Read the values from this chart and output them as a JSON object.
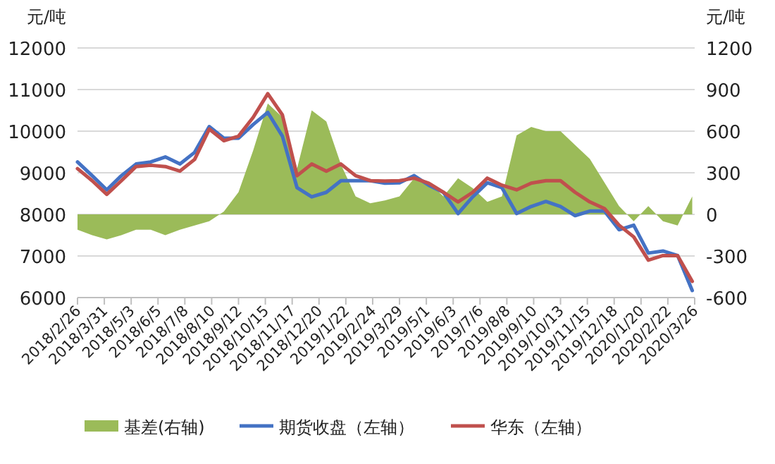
{
  "chart_data": {
    "type": "line",
    "ylabel": "元/吨",
    "y2label": "元/吨",
    "x": [
      "2018-02-26",
      "2018-03-16",
      "2018-04-03",
      "2018-04-21",
      "2018-05-09",
      "2018-05-27",
      "2018-06-14",
      "2018-07-02",
      "2018-07-20",
      "2018-08-07",
      "2018-08-25",
      "2018-09-12",
      "2018-09-30",
      "2018-10-18",
      "2018-11-05",
      "2018-11-23",
      "2018-12-11",
      "2018-12-29",
      "2019-01-16",
      "2019-02-03",
      "2019-02-21",
      "2019-03-11",
      "2019-03-29",
      "2019-04-16",
      "2019-05-04",
      "2019-05-22",
      "2019-06-09",
      "2019-06-27",
      "2019-07-15",
      "2019-08-02",
      "2019-08-20",
      "2019-09-07",
      "2019-09-25",
      "2019-10-13",
      "2019-10-31",
      "2019-11-18",
      "2019-12-06",
      "2019-12-24",
      "2020-01-11",
      "2020-01-29",
      "2020-02-16",
      "2020-03-05",
      "2020-03-23"
    ],
    "series": [
      {
        "name": "基差(右轴)",
        "type": "area",
        "axis": "y2",
        "color": "#9bbb59",
        "values": [
          -110,
          -150,
          -180,
          -150,
          -110,
          -110,
          -150,
          -110,
          -80,
          -50,
          20,
          160,
          460,
          800,
          700,
          330,
          750,
          670,
          360,
          130,
          80,
          100,
          130,
          260,
          230,
          130,
          260,
          190,
          90,
          130,
          570,
          630,
          600,
          600,
          500,
          400,
          230,
          60,
          -50,
          60,
          -50,
          -80,
          130
        ]
      },
      {
        "name": "期货收盘（左轴）",
        "color": "#4472c4",
        "values": [
          9260,
          8930,
          8590,
          8930,
          9210,
          9260,
          9380,
          9210,
          9490,
          10110,
          9830,
          9830,
          10160,
          10450,
          9880,
          8640,
          8420,
          8530,
          8810,
          8810,
          8810,
          8750,
          8760,
          8930,
          8700,
          8530,
          8020,
          8420,
          8760,
          8640,
          8020,
          8190,
          8310,
          8190,
          7970,
          8080,
          8080,
          7630,
          7740,
          7070,
          7120,
          7010,
          6170
        ]
      },
      {
        "name": "华东（左轴）",
        "color": "#c0504d",
        "values": [
          9100,
          8810,
          8480,
          8810,
          9150,
          9180,
          9150,
          9040,
          9320,
          10050,
          9770,
          9880,
          10330,
          10900,
          10390,
          8930,
          9210,
          9040,
          9210,
          8930,
          8810,
          8800,
          8810,
          8870,
          8750,
          8530,
          8300,
          8530,
          8870,
          8700,
          8590,
          8750,
          8810,
          8810,
          8530,
          8300,
          8140,
          7740,
          7460,
          6900,
          7010,
          7010,
          6390
        ]
      }
    ],
    "xlim": [
      "2018-02-26",
      "2020-03-26"
    ],
    "xticks": [
      {
        "value": "2018-02-26",
        "label": "2018/2/26"
      },
      {
        "value": "2018-03-31",
        "label": "2018/3/31"
      },
      {
        "value": "2018-05-03",
        "label": "2018/5/3"
      },
      {
        "value": "2018-06-05",
        "label": "2018/6/5"
      },
      {
        "value": "2018-07-08",
        "label": "2018/7/8"
      },
      {
        "value": "2018-08-10",
        "label": "2018/8/10"
      },
      {
        "value": "2018-09-12",
        "label": "2018/9/12"
      },
      {
        "value": "2018-10-15",
        "label": "2018/10/15"
      },
      {
        "value": "2018-11-17",
        "label": "2018/11/17"
      },
      {
        "value": "2018-12-20",
        "label": "2018/12/20"
      },
      {
        "value": "2019-01-22",
        "label": "2019/1/22"
      },
      {
        "value": "2019-02-24",
        "label": "2019/2/24"
      },
      {
        "value": "2019-03-29",
        "label": "2019/3/29"
      },
      {
        "value": "2019-05-01",
        "label": "2019/5/1"
      },
      {
        "value": "2019-06-03",
        "label": "2019/6/3"
      },
      {
        "value": "2019-07-06",
        "label": "2019/7/6"
      },
      {
        "value": "2019-08-08",
        "label": "2019/8/8"
      },
      {
        "value": "2019-09-10",
        "label": "2019/9/10"
      },
      {
        "value": "2019-10-13",
        "label": "2019/10/13"
      },
      {
        "value": "2019-11-15",
        "label": "2019/11/15"
      },
      {
        "value": "2019-12-18",
        "label": "2019/12/18"
      },
      {
        "value": "2020-01-20",
        "label": "2020/1/20"
      },
      {
        "value": "2020-02-22",
        "label": "2020/2/22"
      },
      {
        "value": "2020-03-26",
        "label": "2020/3/26"
      }
    ],
    "ylim": [
      6000,
      12000
    ],
    "yticks": [
      6000,
      7000,
      8000,
      9000,
      10000,
      11000,
      12000
    ],
    "y2lim": [
      -600,
      1200
    ],
    "y2ticks": [
      -600,
      -300,
      0,
      300,
      600,
      900,
      1200
    ],
    "grid": "y",
    "legend": "bottom"
  }
}
